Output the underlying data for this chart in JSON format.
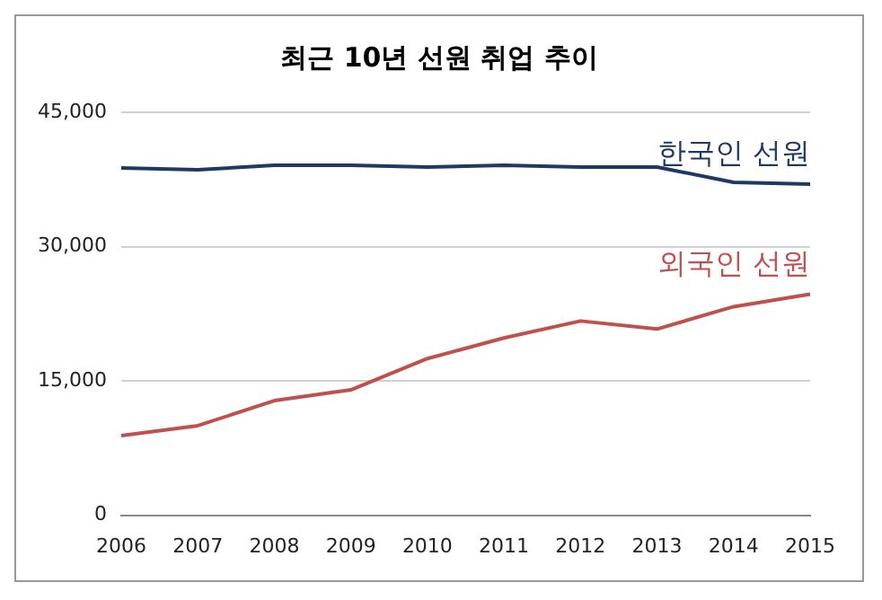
{
  "chart_data": {
    "type": "line",
    "title": "최근 10년 선원 취업 추이",
    "categories": [
      "2006",
      "2007",
      "2008",
      "2009",
      "2010",
      "2011",
      "2012",
      "2013",
      "2014",
      "2015"
    ],
    "series": [
      {
        "name": "한국인 선원",
        "color": "#1f3864",
        "values": [
          38800,
          38600,
          39100,
          39100,
          38900,
          39100,
          38900,
          38900,
          37200,
          37000
        ]
      },
      {
        "name": "외국인 선원",
        "color": "#c0504d",
        "values": [
          8900,
          10000,
          12800,
          14000,
          17500,
          19800,
          21700,
          20800,
          23300,
          24700
        ]
      }
    ],
    "ylim": [
      0,
      45000
    ],
    "yticks": [
      {
        "value": 0,
        "label": "0"
      },
      {
        "value": 15000,
        "label": "15,000"
      },
      {
        "value": 30000,
        "label": "30,000"
      },
      {
        "value": 45000,
        "label": "45,000"
      }
    ],
    "grid": "y",
    "legend": false,
    "marker": "none",
    "line_style": "solid"
  }
}
